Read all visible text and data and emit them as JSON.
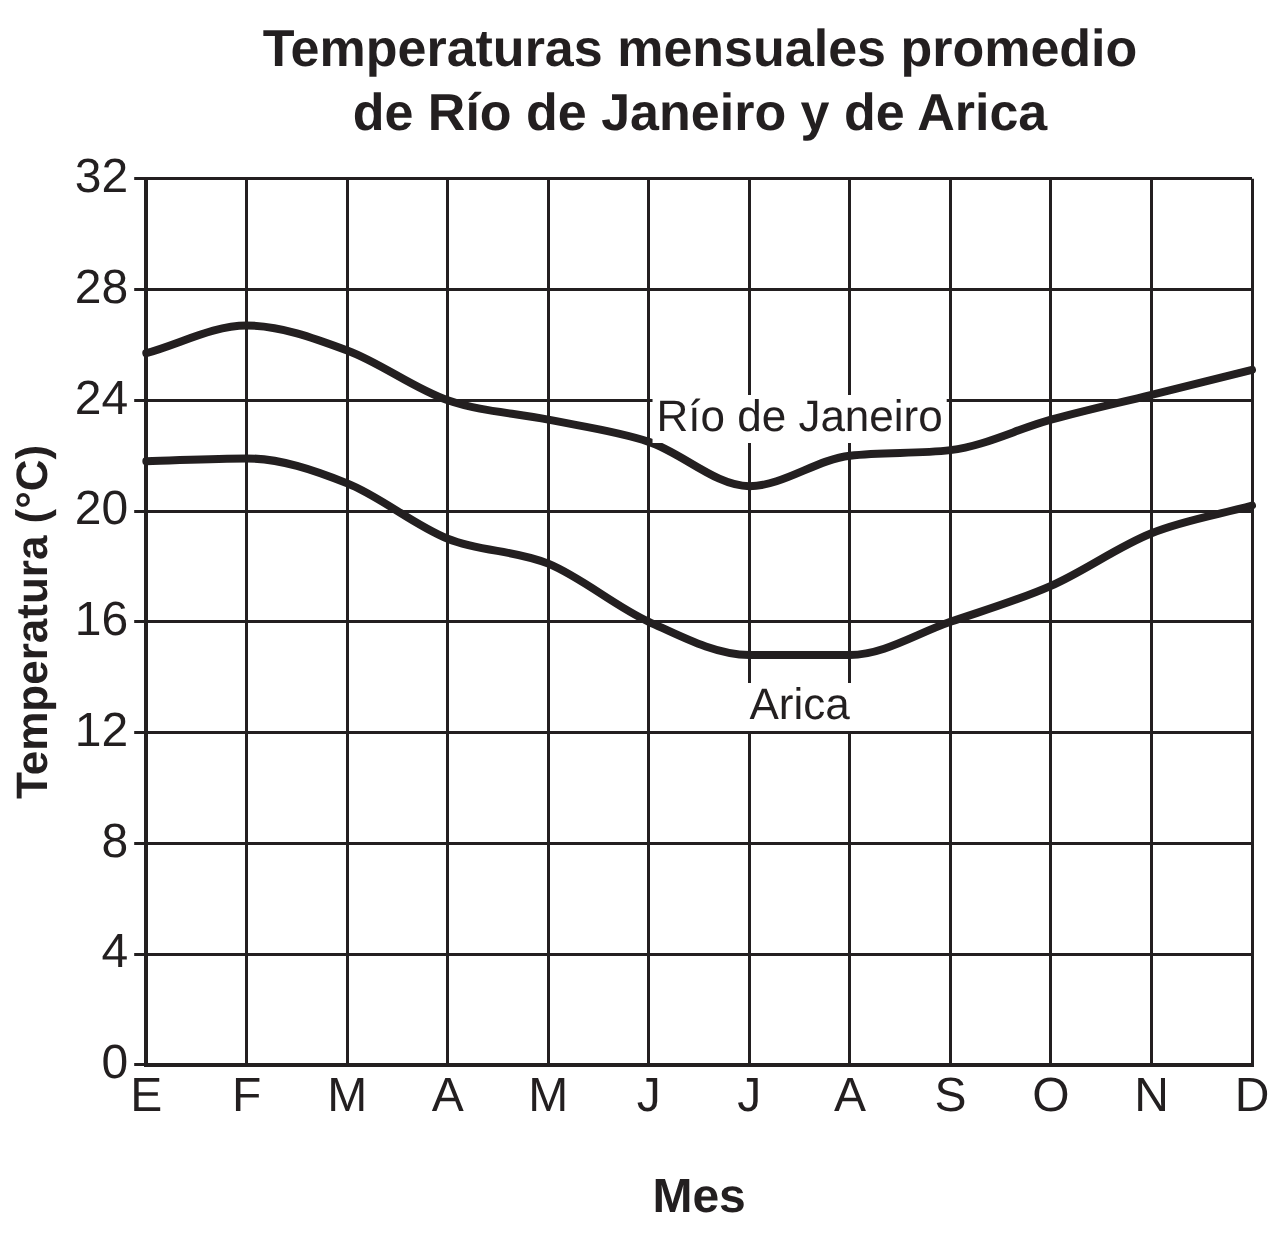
{
  "chart_data": {
    "type": "line",
    "title": "Temperaturas mensuales promedio de Río de Janeiro y de Arica",
    "xlabel": "Mes",
    "ylabel": "Temperatura (°C)",
    "categories": [
      "E",
      "F",
      "M",
      "A",
      "M",
      "J",
      "J",
      "A",
      "S",
      "O",
      "N",
      "D"
    ],
    "series": [
      {
        "name": "Río de Janeiro",
        "color": "#231f20",
        "values": [
          25.7,
          26.7,
          25.8,
          24,
          23.3,
          22.5,
          20.9,
          22,
          22.2,
          23.3,
          24.2,
          25.1
        ]
      },
      {
        "name": "Arica",
        "color": "#231f20",
        "values": [
          21.8,
          21.9,
          21,
          19,
          18.1,
          16,
          14.8,
          14.8,
          16,
          17.3,
          19.2,
          20.2
        ]
      }
    ],
    "ylim": [
      0,
      32
    ],
    "yticks": [
      0,
      4,
      8,
      12,
      16,
      20,
      24,
      28,
      32
    ],
    "grid": true,
    "legend": false,
    "marker": "none",
    "line_style": "solid"
  }
}
